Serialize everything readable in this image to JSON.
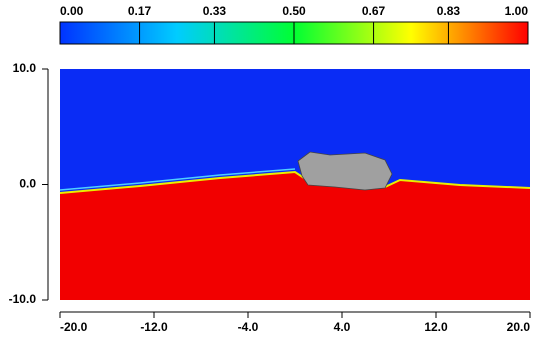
{
  "chart_data": {
    "type": "contour",
    "colormap": [
      "#0033ff",
      "#00ccff",
      "#00ff33",
      "#ffff00",
      "#ff0000"
    ],
    "clim": [
      0,
      1
    ],
    "cticks": [
      {
        "value": 0,
        "label": "0.00"
      },
      {
        "value": 0.17,
        "label": "0.17"
      },
      {
        "value": 0.33,
        "label": "0.33"
      },
      {
        "value": 0.5,
        "label": "0.50"
      },
      {
        "value": 0.67,
        "label": "0.67"
      },
      {
        "value": 0.83,
        "label": "0.83"
      },
      {
        "value": 1,
        "label": "1.00"
      }
    ],
    "xlim": [
      -20,
      20
    ],
    "xticks": [
      {
        "value": -20,
        "label": "-20.0"
      },
      {
        "value": -12,
        "label": "-12.0"
      },
      {
        "value": -4,
        "label": "-4.0"
      },
      {
        "value": 4,
        "label": "4.0"
      },
      {
        "value": 12,
        "label": "12.0"
      },
      {
        "value": 20,
        "label": "20.0"
      }
    ],
    "ylim": [
      -10,
      10
    ],
    "yticks": [
      {
        "value": -10,
        "label": "-10.0"
      },
      {
        "value": 0,
        "label": "0.0"
      },
      {
        "value": 10,
        "label": "10.0"
      }
    ]
  }
}
